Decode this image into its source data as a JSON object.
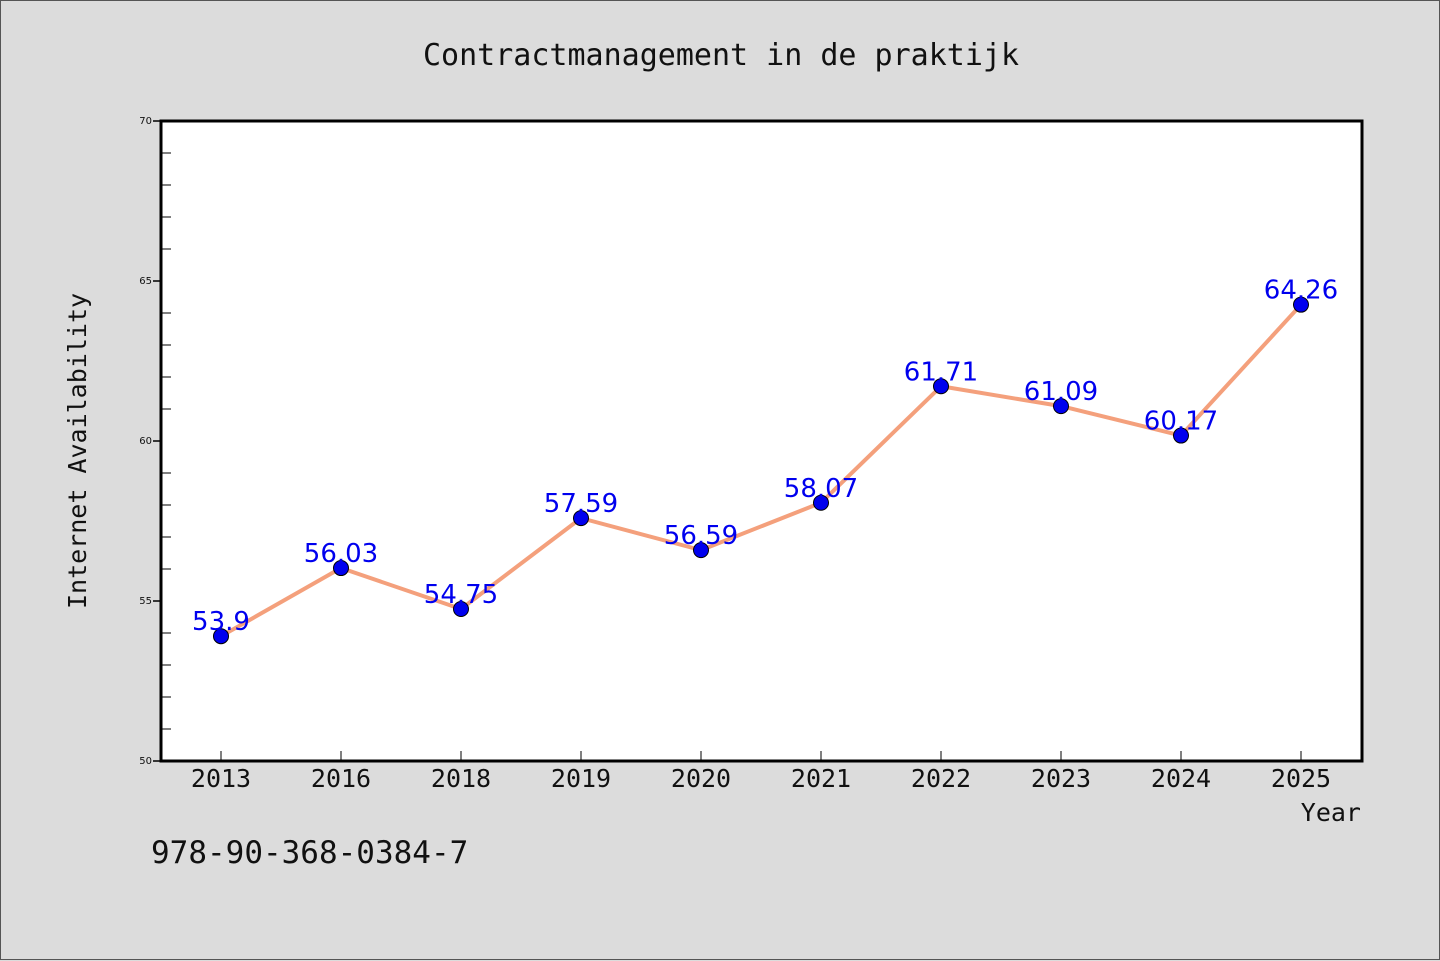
{
  "chart_data": {
    "type": "line",
    "title": "Contractmanagement in de praktijk",
    "xlabel": "Year",
    "ylabel": "Internet Availability",
    "categories": [
      "2013",
      "2016",
      "2018",
      "2019",
      "2020",
      "2021",
      "2022",
      "2023",
      "2024",
      "2025"
    ],
    "series": [
      {
        "values": [
          53.9,
          56.03,
          54.75,
          57.59,
          56.59,
          58.07,
          61.71,
          61.09,
          60.17,
          64.26
        ],
        "data_labels": [
          "53.9",
          "56.03",
          "54.75",
          "57.59",
          "56.59",
          "58.07",
          "61.71",
          "61.09",
          "60.17",
          "64.26"
        ]
      }
    ],
    "ylim": [
      50,
      70
    ],
    "yticks": [
      50,
      55,
      60,
      65,
      70
    ],
    "ytick_labels": [
      "50",
      "55",
      "60",
      "65",
      "70"
    ],
    "grid": false,
    "colors": {
      "line": "#f4a07c",
      "marker": "#0000ee",
      "label": "#0000ee"
    }
  },
  "footer": {
    "isbn": "978-90-368-0384-7"
  }
}
